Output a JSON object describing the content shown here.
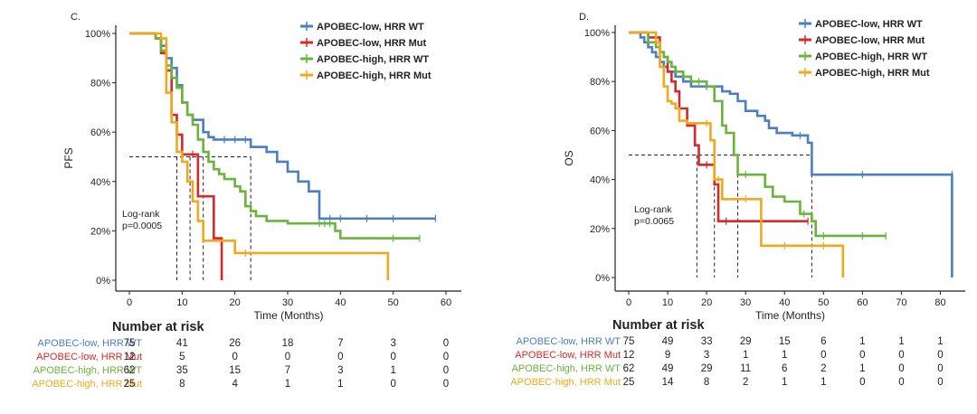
{
  "chart_data": [
    {
      "type": "line",
      "panel_label": "C.",
      "title": "",
      "xlabel": "Time (Months)",
      "ylabel": "PFS",
      "xlim": [
        0,
        60
      ],
      "ylim": [
        0,
        100
      ],
      "x_ticks": [
        "0",
        "10",
        "20",
        "30",
        "40",
        "50",
        "60"
      ],
      "y_ticks": [
        "0%",
        "20%",
        "40%",
        "60%",
        "80%",
        "100%"
      ],
      "legend_position": "top-right",
      "annotation": [
        "Log-rank",
        "p=0.0005"
      ],
      "medians": [
        9,
        11.5,
        14,
        23
      ],
      "series": [
        {
          "name": "APOBEC-low, HRR WT",
          "color": "#4a7fc1",
          "x": [
            0,
            5,
            6,
            7,
            8,
            9,
            10,
            11,
            12,
            14,
            15,
            16,
            18,
            20,
            22,
            23,
            26,
            28,
            30,
            32,
            34,
            36,
            38,
            40,
            45,
            50,
            58
          ],
          "y": [
            100,
            98,
            95,
            90,
            86,
            79,
            72,
            67,
            65,
            60,
            58,
            57,
            57,
            57,
            57,
            54,
            52,
            48,
            44,
            40,
            36,
            25,
            25,
            25,
            25,
            25,
            25
          ]
        },
        {
          "name": "APOBEC-low, HRR Mut",
          "color": "#d42a2a",
          "x": [
            0,
            5,
            6,
            7,
            8,
            9,
            10,
            12,
            13,
            16,
            17.5
          ],
          "y": [
            100,
            98,
            92,
            85,
            67,
            59,
            51,
            51,
            34,
            17,
            0
          ]
        },
        {
          "name": "APOBEC-high, HRR WT",
          "color": "#6ab43c",
          "x": [
            0,
            5,
            6,
            7,
            8,
            9,
            10,
            11,
            12,
            13,
            14,
            15,
            16,
            17,
            18,
            20,
            21,
            22,
            23,
            24,
            26,
            30,
            36,
            37,
            38,
            39,
            40,
            50,
            55
          ],
          "y": [
            100,
            98,
            93,
            87,
            82,
            78,
            72,
            67,
            63,
            57,
            52,
            48,
            45,
            43,
            41,
            38,
            36,
            30,
            28,
            26,
            24,
            23,
            23,
            23,
            23,
            20,
            17,
            17,
            17
          ]
        },
        {
          "name": "APOBEC-high, HRR Mut",
          "color": "#f2a81c",
          "x": [
            0,
            6,
            7,
            8,
            9,
            10,
            11,
            12,
            13,
            14,
            20,
            22,
            49
          ],
          "y": [
            100,
            98,
            76,
            64,
            52,
            48,
            40,
            32,
            24,
            16,
            11,
            11,
            0
          ]
        }
      ],
      "risk_table": {
        "title": "Number at risk",
        "times": [
          0,
          10,
          20,
          30,
          40,
          50,
          60
        ],
        "rows": [
          {
            "label": "APOBEC-low, HRR WT",
            "color": "#4a7fc1",
            "values": [
              "75",
              "41",
              "26",
              "18",
              "7",
              "3",
              "0"
            ]
          },
          {
            "label": "APOBEC-low, HRR Mut",
            "color": "#d42a2a",
            "values": [
              "12",
              "5",
              "0",
              "0",
              "0",
              "0",
              "0"
            ]
          },
          {
            "label": "APOBEC-high, HRR WT",
            "color": "#6ab43c",
            "values": [
              "62",
              "35",
              "15",
              "7",
              "3",
              "1",
              "0"
            ]
          },
          {
            "label": "APOBEC-high, HRR Mut",
            "color": "#f2a81c",
            "values": [
              "25",
              "8",
              "4",
              "1",
              "1",
              "0",
              "0"
            ]
          }
        ]
      }
    },
    {
      "type": "line",
      "panel_label": "D.",
      "title": "",
      "xlabel": "Time (Months)",
      "ylabel": "OS",
      "xlim": [
        0,
        85
      ],
      "ylim": [
        0,
        100
      ],
      "x_ticks": [
        "0",
        "10",
        "20",
        "30",
        "40",
        "50",
        "60",
        "70",
        "80"
      ],
      "y_ticks": [
        "0%",
        "20%",
        "40%",
        "60%",
        "80%",
        "100%"
      ],
      "legend_position": "top-right",
      "annotation": [
        "Log-rank",
        "p=0.0065"
      ],
      "medians": [
        17.5,
        22,
        28,
        47
      ],
      "series": [
        {
          "name": "APOBEC-low, HRR WT",
          "color": "#4a7fc1",
          "x": [
            0,
            3,
            4,
            5,
            6,
            7,
            8,
            9,
            10,
            12,
            14,
            16,
            20,
            24,
            26,
            28,
            30,
            33,
            35,
            36,
            38,
            42,
            44,
            46,
            47,
            60,
            83,
            83
          ],
          "y": [
            100,
            98,
            96,
            94,
            92,
            90,
            88,
            86,
            84,
            82,
            80,
            78,
            78,
            76,
            75,
            72,
            68,
            66,
            64,
            61,
            59,
            58,
            58,
            55,
            42,
            42,
            42,
            0
          ]
        },
        {
          "name": "APOBEC-low, HRR Mut",
          "color": "#d42a2a",
          "x": [
            0,
            5,
            8,
            9,
            10,
            11,
            12,
            13,
            15,
            17,
            18,
            20,
            22,
            23,
            25,
            46
          ],
          "y": [
            100,
            98,
            92,
            90,
            84,
            80,
            76,
            69,
            62,
            54,
            46,
            46,
            38,
            23,
            23,
            23
          ]
        },
        {
          "name": "APOBEC-high, HRR WT",
          "color": "#6ab43c",
          "x": [
            0,
            5,
            7,
            8,
            9,
            10,
            11,
            12,
            14,
            16,
            18,
            20,
            22,
            24,
            25,
            27,
            28,
            30,
            35,
            37,
            40,
            44,
            45,
            47,
            48,
            50,
            60,
            66
          ],
          "y": [
            100,
            96,
            94,
            92,
            90,
            88,
            86,
            84,
            82,
            80,
            80,
            78,
            72,
            62,
            59,
            50,
            42,
            42,
            37,
            33,
            31,
            26,
            26,
            23,
            17,
            17,
            17,
            17
          ]
        },
        {
          "name": "APOBEC-high, HRR Mut",
          "color": "#f2a81c",
          "x": [
            0,
            7,
            8,
            9,
            10,
            11,
            12,
            13,
            15,
            20,
            21,
            22,
            23,
            24,
            30,
            34,
            40,
            50,
            55
          ],
          "y": [
            100,
            96,
            86,
            78,
            72,
            71,
            69,
            64,
            63,
            63,
            56,
            40,
            40,
            32,
            32,
            13,
            13,
            13,
            0
          ]
        }
      ],
      "risk_table": {
        "title": "Number at risk",
        "times": [
          0,
          10,
          20,
          30,
          40,
          50,
          60,
          70,
          80
        ],
        "rows": [
          {
            "label": "APOBEC-low, HRR WT",
            "color": "#4a7fc1",
            "values": [
              "75",
              "49",
              "33",
              "29",
              "15",
              "6",
              "1",
              "1",
              "1"
            ]
          },
          {
            "label": "APOBEC-low, HRR Mut",
            "color": "#d42a2a",
            "values": [
              "12",
              "9",
              "3",
              "1",
              "1",
              "0",
              "0",
              "0",
              "0"
            ]
          },
          {
            "label": "APOBEC-high, HRR WT",
            "color": "#6ab43c",
            "values": [
              "62",
              "49",
              "29",
              "11",
              "6",
              "2",
              "1",
              "0",
              "0"
            ]
          },
          {
            "label": "APOBEC-high, HRR Mut",
            "color": "#f2a81c",
            "values": [
              "25",
              "14",
              "8",
              "2",
              "1",
              "1",
              "0",
              "0",
              "0"
            ]
          }
        ]
      }
    }
  ]
}
